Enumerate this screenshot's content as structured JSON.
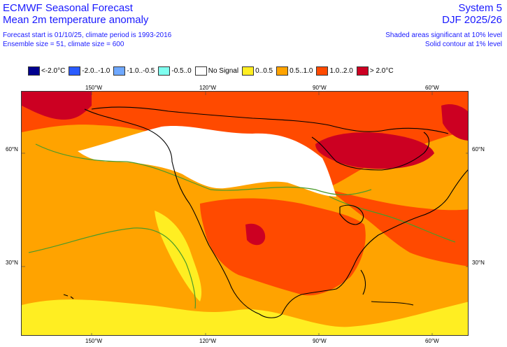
{
  "header": {
    "left_title": "ECMWF Seasonal Forecast",
    "left_subtitle": "Mean 2m temperature anomaly",
    "left_line3": "Forecast start is 01/10/25, climate period is 1993-2016",
    "left_line4": "Ensemble size = 51, climate size = 600",
    "right_title": "System 5",
    "right_subtitle": "DJF 2025/26",
    "right_line3": "Shaded areas significant at 10% level",
    "right_line4": "Solid contour at 1% level"
  },
  "legend": [
    {
      "label": "<-2.0°C",
      "color": "#00008f"
    },
    {
      "label": "-2.0..-1.0",
      "color": "#2a5bff"
    },
    {
      "label": "-1.0..-0.5",
      "color": "#6fa8ff"
    },
    {
      "label": "-0.5..0",
      "color": "#7ffff0"
    },
    {
      "label": "No Signal",
      "color": "#ffffff"
    },
    {
      "label": "0..0.5",
      "color": "#ffee22"
    },
    {
      "label": "0.5..1.0",
      "color": "#ffa300"
    },
    {
      "label": "1.0..2.0",
      "color": "#ff4a00"
    },
    {
      "label": "> 2.0°C",
      "color": "#cc0022"
    }
  ],
  "axes": {
    "top_lon": [
      "150°W",
      "120°W",
      "90°W",
      "60°W"
    ],
    "bottom_lon": [
      "150°W",
      "120°W",
      "90°W",
      "60°W"
    ],
    "left_lat": [
      "60°N",
      "30°N"
    ],
    "right_lat": [
      "60°N",
      "30°N"
    ]
  },
  "colors": {
    "header_text": "#1a1aff",
    "significance_contour": "#4a9a2a",
    "coastline": "#000000"
  }
}
